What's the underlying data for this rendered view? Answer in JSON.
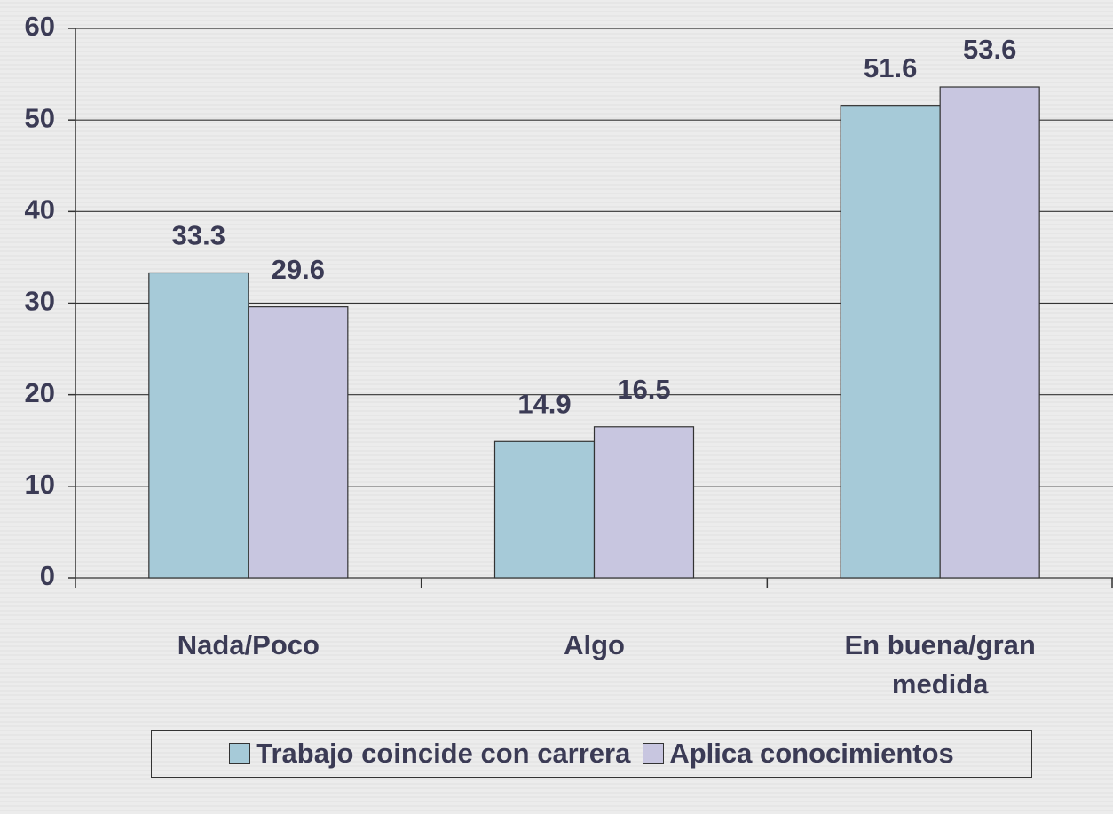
{
  "chart_data": {
    "type": "bar",
    "categories": [
      "Nada/Poco",
      "Algo",
      "En buena/gran medida"
    ],
    "series": [
      {
        "name": "Trabajo coincide con carrera",
        "color": "#a6cad8",
        "values": [
          33.3,
          14.9,
          51.6
        ]
      },
      {
        "name": "Aplica conocimientos",
        "color": "#c8c6e0",
        "values": [
          29.6,
          16.5,
          53.6
        ]
      }
    ],
    "ylim": [
      0,
      60
    ],
    "yticks": [
      0,
      10,
      20,
      30,
      40,
      50,
      60
    ],
    "grid": true,
    "legend": "bottom"
  }
}
